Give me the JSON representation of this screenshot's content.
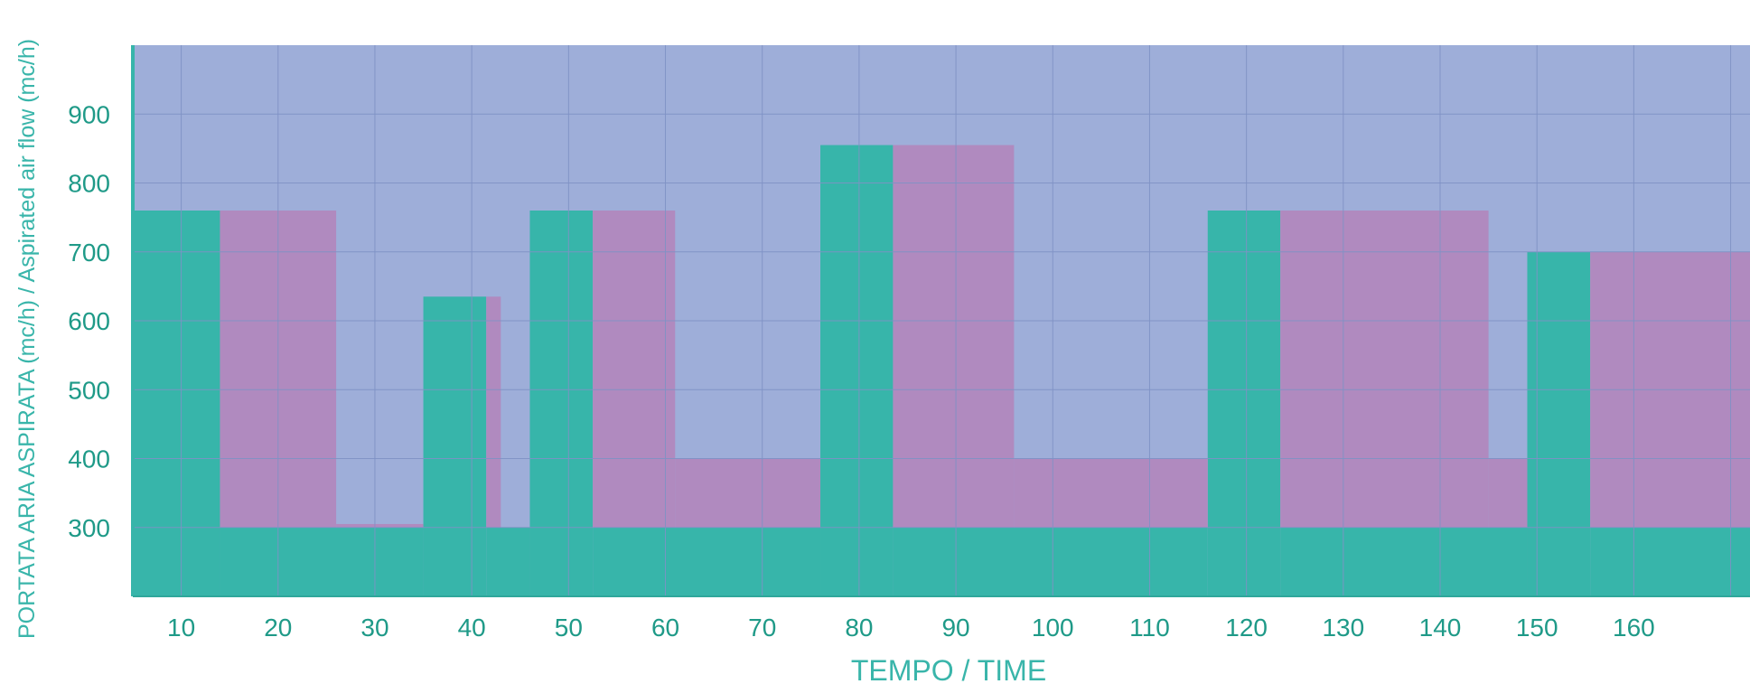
{
  "chart_data": {
    "type": "area",
    "title": "",
    "xlabel": "TEMPO / TIME",
    "ylabel": "PORTATA ARIA ASPIRATA (mc/h) / Aspirated air flow (mc/h)",
    "x_ticks": [
      10,
      20,
      30,
      40,
      50,
      60,
      70,
      80,
      90,
      100,
      110,
      120,
      130,
      140,
      150,
      160
    ],
    "y_ticks": [
      300,
      400,
      500,
      600,
      700,
      800,
      900
    ],
    "xlim": [
      5,
      172
    ],
    "ylim": [
      200,
      1000
    ],
    "grid": true,
    "colors": {
      "background": "#9eaed9",
      "grid": "#7f92c5",
      "series_1": "#37b5aa",
      "series_2": "#b08abf",
      "axis_text": "#1f9a88",
      "axis_title": "#39b5aa"
    },
    "series": [
      {
        "x": [
          5,
          14,
          14,
          46,
          46,
          54,
          54,
          76,
          76,
          84,
          84,
          116,
          116,
          124,
          124,
          149,
          149,
          156,
          156,
          172
        ],
        "values": [
          760,
          760,
          300,
          300,
          760,
          760,
          300,
          300,
          855,
          855,
          300,
          300,
          760,
          760,
          300,
          300,
          700,
          700,
          300,
          300
        ],
        "segments": [
          {
            "x": [
              5,
              14
            ],
            "values": [
              760,
              760
            ]
          },
          {
            "x": [
              14,
              35
            ],
            "values": [
              300,
              300
            ]
          },
          {
            "x": [
              35,
              41.5
            ],
            "values": [
              635,
              635
            ]
          },
          {
            "x": [
              41.5,
              46
            ],
            "values": [
              300,
              300
            ]
          },
          {
            "x": [
              46,
              52.5
            ],
            "values": [
              760,
              760
            ]
          },
          {
            "x": [
              52.5,
              76
            ],
            "values": [
              300,
              300
            ]
          },
          {
            "x": [
              76,
              83.5
            ],
            "values": [
              855,
              855
            ]
          },
          {
            "x": [
              83.5,
              116
            ],
            "values": [
              300,
              300
            ]
          },
          {
            "x": [
              116,
              123.5
            ],
            "values": [
              760,
              760
            ]
          },
          {
            "x": [
              123.5,
              149
            ],
            "values": [
              300,
              300
            ]
          },
          {
            "x": [
              149,
              155.5
            ],
            "values": [
              700,
              700
            ]
          },
          {
            "x": [
              155.5,
              172
            ],
            "values": [
              300,
              300
            ]
          }
        ]
      },
      {
        "segments": [
          {
            "x": [
              14,
              26
            ],
            "values": [
              760,
              760
            ]
          },
          {
            "x": [
              26,
              35
            ],
            "values": [
              305,
              305
            ]
          },
          {
            "x": [
              41.5,
              43
            ],
            "values": [
              635,
              635
            ]
          },
          {
            "x": [
              52.5,
              61
            ],
            "values": [
              760,
              760
            ]
          },
          {
            "x": [
              61,
              76
            ],
            "values": [
              400,
              400
            ]
          },
          {
            "x": [
              83.5,
              96
            ],
            "values": [
              855,
              855
            ]
          },
          {
            "x": [
              96,
              116
            ],
            "values": [
              400,
              400
            ]
          },
          {
            "x": [
              123.5,
              145
            ],
            "values": [
              760,
              760
            ]
          },
          {
            "x": [
              145,
              149
            ],
            "values": [
              400,
              400
            ]
          },
          {
            "x": [
              155.5,
              172
            ],
            "values": [
              700,
              700
            ]
          }
        ]
      }
    ]
  }
}
